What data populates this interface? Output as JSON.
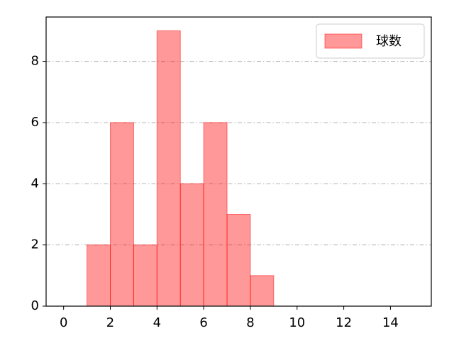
{
  "chart_data": {
    "type": "histogram",
    "bins": [
      1,
      2,
      3,
      4,
      5,
      6,
      7,
      8,
      9
    ],
    "series": [
      {
        "name": "球数",
        "color": "#ff0000",
        "values": [
          2,
          6,
          2,
          9,
          4,
          6,
          3,
          1
        ]
      }
    ],
    "xlim": [
      -0.75,
      15.75
    ],
    "xticks": [
      0,
      2,
      4,
      6,
      8,
      10,
      12,
      14
    ],
    "ylim": [
      0,
      9.45
    ],
    "yticks": [
      0,
      2,
      4,
      6,
      8
    ],
    "grid": "y",
    "legend": "upper right"
  }
}
